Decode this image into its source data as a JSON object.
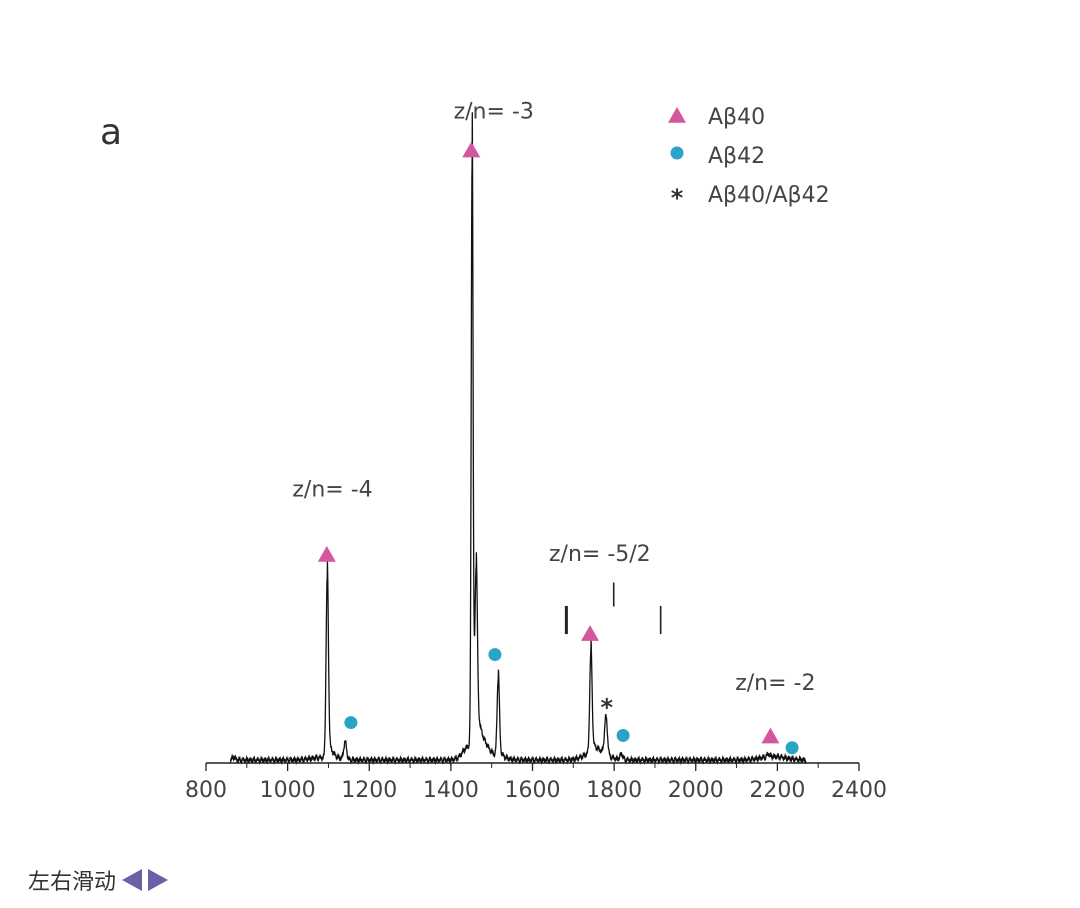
{
  "panel_label": "a",
  "swipe_hint": {
    "label": "左右滑动",
    "left_icon": "triangle-left-icon",
    "right_icon": "triangle-right-icon",
    "color": "#6b5fa5"
  },
  "chart_data": {
    "type": "line",
    "title": "",
    "xlabel": "",
    "ylabel": "",
    "xlim": [
      800,
      2400
    ],
    "ylim": [
      0,
      100
    ],
    "x_ticks": [
      800,
      1000,
      1200,
      1400,
      1600,
      1800,
      2000,
      2200,
      2400
    ],
    "grid": false,
    "legend_position": "top-right",
    "legend": [
      {
        "label": "Aβ40",
        "marker": "triangle",
        "color": "#d4579e"
      },
      {
        "label": "Aβ42",
        "marker": "circle",
        "color": "#2ba3c7"
      },
      {
        "label": "Aβ40/Aβ42",
        "marker": "star",
        "color": "#333333"
      }
    ],
    "peaks": [
      {
        "x": 868,
        "y": 1
      },
      {
        "x": 1097,
        "y": 31
      },
      {
        "x": 1141,
        "y": 3.5
      },
      {
        "x": 1452,
        "y": 100
      },
      {
        "x": 1462,
        "y": 26
      },
      {
        "x": 1516,
        "y": 14
      },
      {
        "x": 1743,
        "y": 17.5
      },
      {
        "x": 1780,
        "y": 7
      },
      {
        "x": 1818,
        "y": 1.5
      },
      {
        "x": 2178,
        "y": 1
      },
      {
        "x": 2230,
        "y": 0.5
      }
    ],
    "markers": [
      {
        "series": "Aβ40",
        "x": 1096,
        "y": 35.5
      },
      {
        "series": "Aβ40",
        "x": 1450,
        "y": 104.5
      },
      {
        "series": "Aβ40",
        "x": 1741,
        "y": 22
      },
      {
        "series": "Aβ40",
        "x": 2183,
        "y": 4.5
      },
      {
        "series": "Aβ42",
        "x": 1155,
        "y": 6.9
      },
      {
        "series": "Aβ42",
        "x": 1508,
        "y": 18.5
      },
      {
        "series": "Aβ42",
        "x": 1822,
        "y": 4.7
      },
      {
        "series": "Aβ42",
        "x": 2236,
        "y": 2.6
      },
      {
        "series": "Aβ40/Aβ42",
        "x": 1782,
        "y": 9.6
      }
    ],
    "annotations": [
      {
        "text": "z/n= -4",
        "x": 1110,
        "y": 45.5
      },
      {
        "text": "z/n= -3",
        "x": 1505,
        "y": 110
      },
      {
        "text": "z/n= -5/2",
        "x": 1765,
        "y": 34.5
      },
      {
        "text": "z/n= -2",
        "x": 2195,
        "y": 12.5
      }
    ],
    "tick_marks": [
      {
        "x": 1683,
        "y0": 22,
        "y1": 26.8
      },
      {
        "x": 1799,
        "y0": 26.7,
        "y1": 30.8
      },
      {
        "x": 1914,
        "y0": 22,
        "y1": 26.8
      }
    ]
  }
}
